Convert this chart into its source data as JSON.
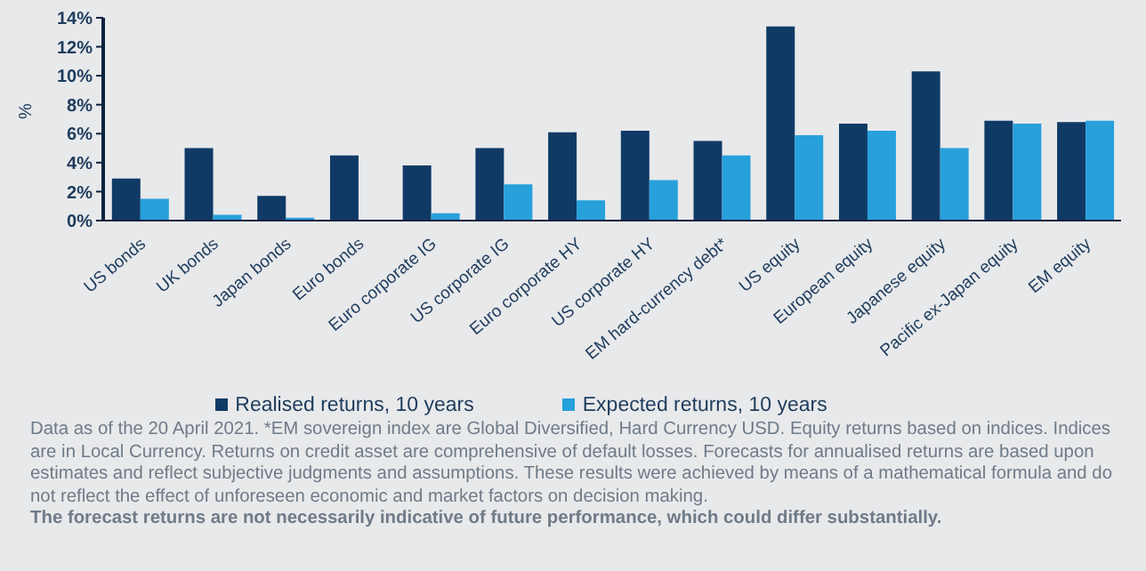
{
  "chart_data": {
    "type": "bar",
    "ylabel": "%",
    "categories": [
      "US bonds",
      "UK bonds",
      "Japan bonds",
      "Euro bonds",
      "Euro corporate IG",
      "US corporate IG",
      "Euro corporate HY",
      "US corporate HY",
      "EM hard-currency debt*",
      "US equity",
      "European equity",
      "Japanese equity",
      "Pacific ex-Japan equity",
      "EM equity"
    ],
    "series": [
      {
        "name": "Realised returns, 10 years",
        "color": "#103a66",
        "values": [
          2.9,
          5.0,
          1.7,
          4.5,
          3.8,
          5.0,
          6.1,
          6.2,
          5.5,
          13.4,
          6.7,
          10.3,
          6.9,
          6.8
        ]
      },
      {
        "name": "Expected returns, 10 years",
        "color": "#27a0dc",
        "values": [
          1.5,
          0.4,
          0.2,
          0,
          0.5,
          2.5,
          1.4,
          2.8,
          4.5,
          5.9,
          6.2,
          5.0,
          6.7,
          6.9
        ]
      }
    ],
    "ylim": [
      0,
      14
    ],
    "yticks": [
      {
        "value": 0,
        "label": "0%"
      },
      {
        "value": 2,
        "label": "2%"
      },
      {
        "value": 4,
        "label": "4%"
      },
      {
        "value": 6,
        "label": "6%"
      },
      {
        "value": 8,
        "label": "8%"
      },
      {
        "value": 10,
        "label": "10%"
      },
      {
        "value": 12,
        "label": "12%"
      },
      {
        "value": 14,
        "label": "14%"
      }
    ],
    "grid": false,
    "legend": "bottom",
    "annotations": [
      "Data as of the 20 April 2021. *EM sovereign index are Global Diversified, Hard Currency USD. Equity returns based on indices. Indices are in Local Currency. Returns on credit asset are comprehensive of default losses. Forecasts for annualised returns are based upon estimates and reflect subjective judgments and assumptions. These results were achieved by means of a mathematical formula and do not reflect the effect of unforeseen economic and market factors on decision making.",
      "The forecast returns are not necessarily indicative of future performance, which could differ substantially."
    ]
  }
}
